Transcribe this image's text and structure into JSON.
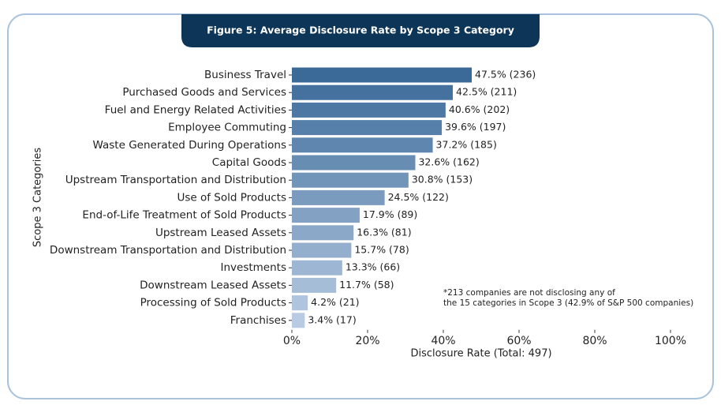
{
  "chart_data": {
    "type": "bar",
    "orientation": "horizontal",
    "title": "Figure 5:  Average Disclosure Rate by Scope 3 Category",
    "x_label": "Disclosure Rate (Total: 497)",
    "y_label": "Scope 3 Categories",
    "annotation": [
      "*213 companies are not disclosing any of",
      "the 15 categories in Scope 3 (42.9% of S&P 500 companies)"
    ],
    "categories": [
      "Business Travel",
      "Purchased Goods and Services",
      "Fuel and Energy Related Activities",
      "Employee Commuting",
      "Waste Generated During Operations",
      "Capital Goods",
      "Upstream Transportation and Distribution",
      "Use of Sold Products",
      "End-of-Life Treatment of Sold Products",
      "Upstream Leased Assets",
      "Downstream Transportation and Distribution",
      "Investments",
      "Downstream Leased Assets",
      "Processing of Sold Products",
      "Franchises"
    ],
    "values": [
      47.5,
      42.5,
      40.6,
      39.6,
      37.2,
      32.6,
      30.8,
      24.5,
      17.9,
      16.3,
      15.7,
      13.3,
      11.7,
      4.2,
      3.4
    ],
    "value_labels": [
      "47.5% (236)",
      "42.5% (211)",
      "40.6% (202)",
      "39.6% (197)",
      "37.2% (185)",
      "32.6% (162)",
      "30.8% (153)",
      "24.5% (122)",
      "17.9% (89)",
      "16.3% (81)",
      "15.7% (78)",
      "13.3% (66)",
      "11.7% (58)",
      "4.2% (21)",
      "3.4% (17)"
    ],
    "colors": [
      "#3b6a99",
      "#44719e",
      "#4d78a4",
      "#567fa9",
      "#5f86ae",
      "#688db3",
      "#7194b9",
      "#7a9abe",
      "#82a1c3",
      "#8ba8c9",
      "#94afce",
      "#9db6d3",
      "#a6bdd8",
      "#afc4de",
      "#b8cbe3"
    ],
    "xlim": [
      0,
      100
    ],
    "xticks": [
      {
        "value": 0,
        "label": "0%"
      },
      {
        "value": 20,
        "label": "20%"
      },
      {
        "value": 40,
        "label": "40%"
      },
      {
        "value": 60,
        "label": "60%"
      },
      {
        "value": 80,
        "label": "80%"
      },
      {
        "value": 100,
        "label": "100%"
      }
    ],
    "grid": false
  }
}
